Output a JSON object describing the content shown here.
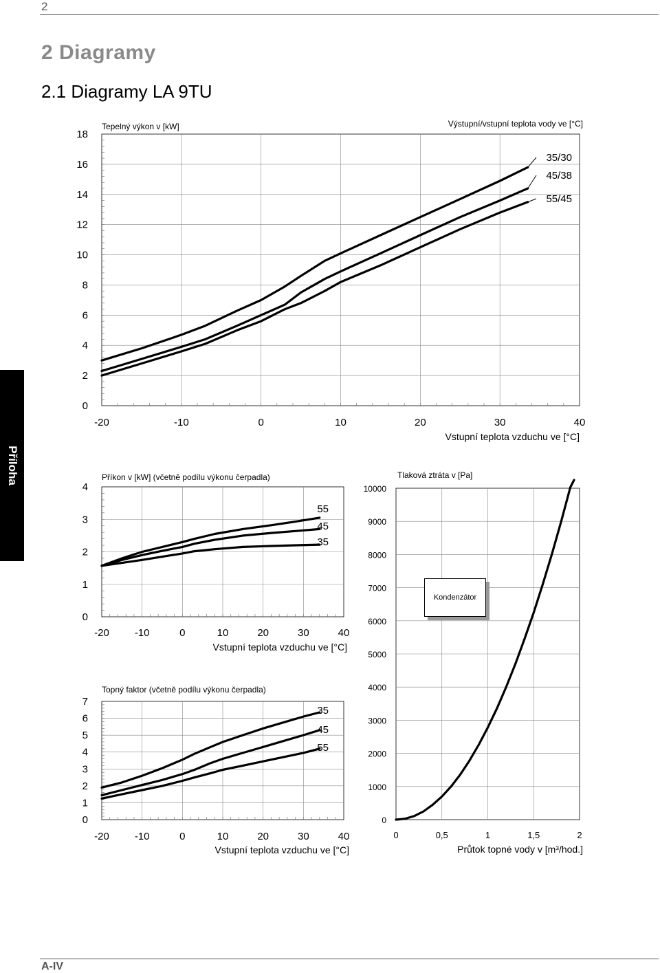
{
  "page": {
    "number": "2",
    "heading1": "2  Diagramy",
    "heading2": "2.1   Diagramy LA 9TU",
    "side_tab": "Příloha",
    "footer": "A-IV"
  },
  "chart_data": [
    {
      "type": "line",
      "title": "Tepelný výkon v [kW]",
      "legend_title": "Výstupní/vstupní teplota vody ve [°C]",
      "xlabel": "Vstupní teplota vzduchu ve [°C]",
      "xlim": [
        -20,
        40
      ],
      "ylim": [
        0,
        18
      ],
      "xticks": [
        "-20",
        "-10",
        "0",
        "10",
        "20",
        "30",
        "40"
      ],
      "yticks": [
        "0",
        "2",
        "4",
        "6",
        "8",
        "10",
        "12",
        "14",
        "16",
        "18"
      ],
      "series": [
        {
          "name": "35/30",
          "x": [
            -20,
            -15,
            -10,
            -7,
            -3,
            0,
            3,
            5,
            8,
            10,
            15,
            20,
            25,
            30,
            33.5
          ],
          "y": [
            3.0,
            3.8,
            4.7,
            5.3,
            6.3,
            7.0,
            7.9,
            8.6,
            9.6,
            10.1,
            11.3,
            12.5,
            13.7,
            14.9,
            15.8
          ]
        },
        {
          "name": "45/38",
          "x": [
            -20,
            -15,
            -10,
            -7,
            -3,
            0,
            3,
            5,
            8,
            10,
            15,
            20,
            25,
            30,
            33.5
          ],
          "y": [
            2.3,
            3.1,
            3.9,
            4.4,
            5.3,
            6.0,
            6.7,
            7.5,
            8.4,
            8.9,
            10.1,
            11.3,
            12.5,
            13.6,
            14.4
          ]
        },
        {
          "name": "55/45",
          "x": [
            -20,
            -15,
            -10,
            -7,
            -3,
            0,
            3,
            5,
            8,
            10,
            15,
            20,
            25,
            30,
            33.5
          ],
          "y": [
            2.0,
            2.8,
            3.6,
            4.1,
            5.0,
            5.6,
            6.4,
            6.8,
            7.6,
            8.2,
            9.3,
            10.5,
            11.7,
            12.8,
            13.5
          ]
        }
      ]
    },
    {
      "type": "line",
      "title": "Příkon v [kW] (včetně podílu výkonu čerpadla)",
      "xlabel": "Vstupní teplota vzduchu ve [°C]",
      "xlim": [
        -20,
        40
      ],
      "ylim": [
        0,
        4
      ],
      "xticks": [
        "-20",
        "-10",
        "0",
        "10",
        "20",
        "30",
        "40"
      ],
      "yticks": [
        "0",
        "1",
        "2",
        "3",
        "4"
      ],
      "series": [
        {
          "name": "55",
          "x": [
            -20,
            -15,
            -10,
            -5,
            0,
            3,
            8,
            15,
            22,
            28,
            34
          ],
          "y": [
            1.57,
            1.8,
            2.0,
            2.15,
            2.3,
            2.4,
            2.55,
            2.7,
            2.82,
            2.93,
            3.05
          ]
        },
        {
          "name": "45",
          "x": [
            -20,
            -15,
            -10,
            -5,
            0,
            3,
            8,
            15,
            22,
            28,
            34
          ],
          "y": [
            1.57,
            1.75,
            1.9,
            2.03,
            2.15,
            2.25,
            2.37,
            2.5,
            2.58,
            2.64,
            2.7
          ]
        },
        {
          "name": "35",
          "x": [
            -20,
            -15,
            -10,
            -5,
            0,
            3,
            8,
            15,
            22,
            28,
            34
          ],
          "y": [
            1.57,
            1.66,
            1.75,
            1.85,
            1.95,
            2.02,
            2.08,
            2.15,
            2.18,
            2.2,
            2.22
          ]
        }
      ]
    },
    {
      "type": "line",
      "title": "Topný faktor (včetně podílu výkonu čerpadla)",
      "xlabel": "Vstupní teplota vzduchu ve [°C]",
      "xlim": [
        -20,
        40
      ],
      "ylim": [
        0,
        7
      ],
      "xticks": [
        "-20",
        "-10",
        "0",
        "10",
        "20",
        "30",
        "40"
      ],
      "yticks": [
        "0",
        "1",
        "2",
        "3",
        "4",
        "5",
        "6",
        "7"
      ],
      "series": [
        {
          "name": "35",
          "x": [
            -20,
            -15,
            -10,
            -5,
            0,
            3,
            7,
            10,
            15,
            20,
            25,
            30,
            34
          ],
          "y": [
            1.9,
            2.2,
            2.6,
            3.05,
            3.55,
            3.9,
            4.3,
            4.6,
            5.0,
            5.4,
            5.75,
            6.1,
            6.35
          ]
        },
        {
          "name": "45",
          "x": [
            -20,
            -15,
            -10,
            -5,
            0,
            3,
            7,
            10,
            15,
            20,
            25,
            30,
            34
          ],
          "y": [
            1.45,
            1.75,
            2.05,
            2.35,
            2.7,
            2.95,
            3.35,
            3.6,
            3.95,
            4.3,
            4.65,
            5.0,
            5.3
          ]
        },
        {
          "name": "55",
          "x": [
            -20,
            -15,
            -10,
            -5,
            0,
            3,
            7,
            10,
            15,
            20,
            25,
            30,
            34
          ],
          "y": [
            1.25,
            1.5,
            1.75,
            2.0,
            2.3,
            2.5,
            2.75,
            2.95,
            3.2,
            3.45,
            3.7,
            3.95,
            4.2
          ]
        }
      ]
    },
    {
      "type": "line",
      "title": "Tlaková ztráta v [Pa]",
      "annotation": "Kondenzátor",
      "xlabel": "Průtok topné vody v [m³/hod.]",
      "xlim": [
        0,
        2
      ],
      "ylim": [
        0,
        10000
      ],
      "xticks": [
        "0",
        "0,5",
        "1",
        "1,5",
        "2"
      ],
      "yticks": [
        "0",
        "1000",
        "2000",
        "3000",
        "4000",
        "5000",
        "6000",
        "7000",
        "8000",
        "9000",
        "10000"
      ],
      "series": [
        {
          "name": "Kondenzátor",
          "x": [
            0,
            0.1,
            0.2,
            0.3,
            0.4,
            0.5,
            0.6,
            0.7,
            0.8,
            0.9,
            1.0,
            1.1,
            1.2,
            1.3,
            1.4,
            1.5,
            1.6,
            1.7,
            1.8,
            1.9,
            1.94
          ],
          "y": [
            0,
            30,
            110,
            250,
            450,
            700,
            1000,
            1360,
            1780,
            2250,
            2780,
            3360,
            4000,
            4690,
            5450,
            6250,
            7110,
            8030,
            9000,
            10030,
            10460
          ]
        }
      ]
    }
  ]
}
